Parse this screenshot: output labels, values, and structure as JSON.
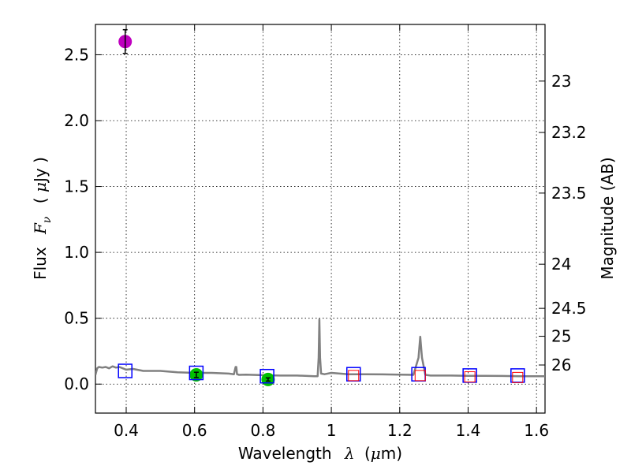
{
  "chart_data": {
    "type": "scatter",
    "title": "",
    "xlabel": {
      "prefix": "Wavelength",
      "symbol": "λ",
      "unit_open": "(",
      "unit_mu": "μ",
      "unit_rest": "m)"
    },
    "ylabel": {
      "prefix": "Flux",
      "symbol": "F",
      "subscript": "ν",
      "unit_open": "(",
      "unit_mu": "μ",
      "unit_rest": "Jy )"
    },
    "y2label": "Magnitude (AB)",
    "xlim": [
      0.31,
      1.625
    ],
    "ylim": [
      -0.22,
      2.73
    ],
    "grid": true,
    "x_ticks": [
      0.4,
      0.6,
      0.8,
      1.0,
      1.2,
      1.4,
      1.6
    ],
    "x_tick_labels": [
      "0.4",
      "0.6",
      "0.8",
      "1",
      "1.2",
      "1.4",
      "1.6"
    ],
    "y_ticks": [
      0.0,
      0.5,
      1.0,
      1.5,
      2.0,
      2.5
    ],
    "y_tick_labels": [
      "0.0",
      "0.5",
      "1.0",
      "1.5",
      "2.0",
      "2.5"
    ],
    "y2_ticks": [
      {
        "label": "23",
        "flux": 2.3
      },
      {
        "label": "23.2",
        "flux": 1.91
      },
      {
        "label": "23.5",
        "flux": 1.45
      },
      {
        "label": "24",
        "flux": 0.91
      },
      {
        "label": "24.5",
        "flux": 0.575
      },
      {
        "label": "25",
        "flux": 0.363
      },
      {
        "label": "26",
        "flux": 0.145
      }
    ],
    "colors": {
      "model": "#808080",
      "magenta_point": "#bf00bf",
      "green_point": "#00c000",
      "model_box": "#0000ff",
      "upper_limit_box": "#ff0000",
      "grid": "#000000"
    },
    "model_spectrum": {
      "x": [
        0.31,
        0.315,
        0.32,
        0.33,
        0.34,
        0.35,
        0.36,
        0.37,
        0.38,
        0.4,
        0.42,
        0.45,
        0.5,
        0.55,
        0.6,
        0.65,
        0.7,
        0.715,
        0.72,
        0.722,
        0.724,
        0.73,
        0.75,
        0.8,
        0.85,
        0.9,
        0.95,
        0.96,
        0.963,
        0.965,
        0.967,
        0.97,
        0.98,
        1.0,
        1.05,
        1.1,
        1.15,
        1.2,
        1.24,
        1.255,
        1.26,
        1.265,
        1.275,
        1.29,
        1.35,
        1.4,
        1.45,
        1.5,
        1.55,
        1.6,
        1.625
      ],
      "y": [
        0.07,
        0.12,
        0.13,
        0.125,
        0.13,
        0.12,
        0.135,
        0.125,
        0.13,
        0.11,
        0.115,
        0.1,
        0.1,
        0.09,
        0.085,
        0.085,
        0.08,
        0.075,
        0.13,
        0.13,
        0.075,
        0.07,
        0.072,
        0.068,
        0.065,
        0.065,
        0.06,
        0.06,
        0.2,
        0.49,
        0.2,
        0.08,
        0.075,
        0.085,
        0.075,
        0.075,
        0.074,
        0.072,
        0.07,
        0.2,
        0.36,
        0.2,
        0.07,
        0.065,
        0.065,
        0.063,
        0.063,
        0.062,
        0.06,
        0.06,
        0.06
      ]
    },
    "measured_points": [
      {
        "name": "magenta",
        "x": 0.397,
        "y": 2.6,
        "yerr": 0.09,
        "color": "#bf00bf"
      },
      {
        "name": "green-1",
        "x": 0.605,
        "y": 0.07,
        "yerr": 0.02,
        "color": "#00c000"
      },
      {
        "name": "green-2",
        "x": 0.815,
        "y": 0.035,
        "yerr": 0.012,
        "color": "#00c000"
      }
    ],
    "model_boxes": [
      {
        "x": 0.397,
        "y": 0.1
      },
      {
        "x": 0.605,
        "y": 0.085
      },
      {
        "x": 0.812,
        "y": 0.06
      },
      {
        "x": 1.065,
        "y": 0.075
      },
      {
        "x": 1.255,
        "y": 0.075
      },
      {
        "x": 1.405,
        "y": 0.065
      },
      {
        "x": 1.545,
        "y": 0.065
      }
    ],
    "upper_limit_boxes": [
      {
        "x": 1.065,
        "y": 0.065
      },
      {
        "x": 1.26,
        "y": 0.065
      },
      {
        "x": 1.405,
        "y": 0.055
      },
      {
        "x": 1.545,
        "y": 0.05
      }
    ]
  }
}
